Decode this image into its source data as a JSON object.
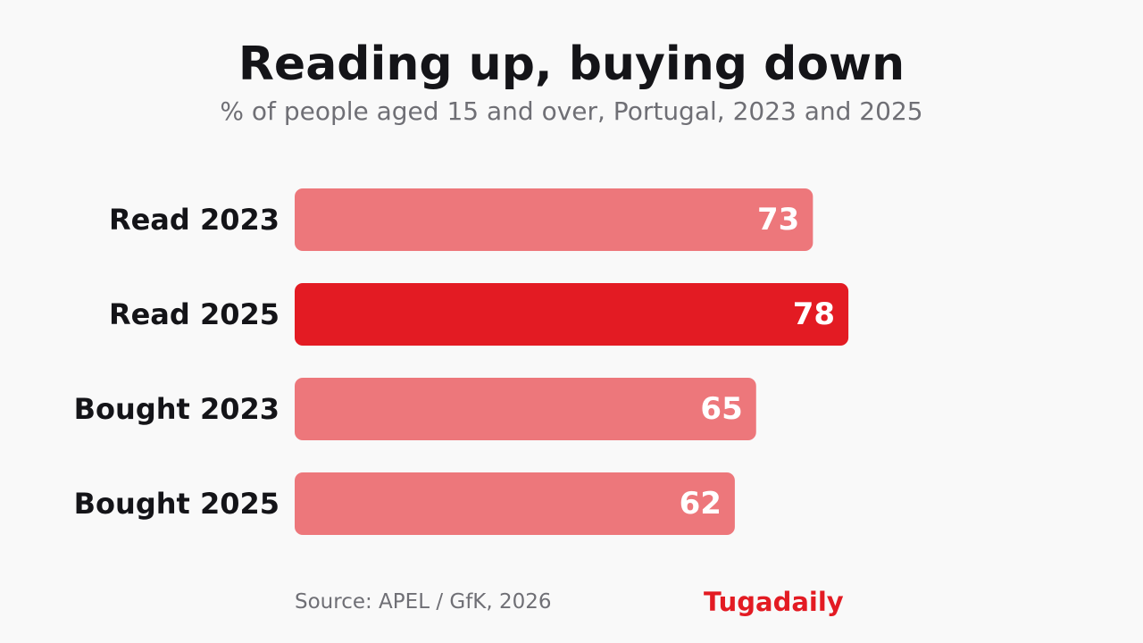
{
  "chart_data": {
    "type": "bar",
    "orientation": "horizontal",
    "title": "Reading up, buying down",
    "subtitle": "% of people aged 15 and over, Portugal, 2023 and 2025",
    "categories": [
      "Read 2023",
      "Read 2025",
      "Bought 2023",
      "Bought 2025"
    ],
    "values": [
      73,
      78,
      65,
      62
    ],
    "highlighted": [
      false,
      true,
      false,
      false
    ],
    "xlim": [
      0,
      100
    ],
    "grid": false,
    "legend": "none",
    "xlabel": "",
    "ylabel": ""
  },
  "colors": {
    "background": "#f9f9f9",
    "bar": "#ed777b",
    "bar_highlight": "#e31b23",
    "value_label": "#ffffff",
    "category_label": "#141418",
    "brand": "#e31b23"
  },
  "footer": {
    "source": "Source: APEL / GfK, 2026",
    "brand": "Tugadaily"
  }
}
